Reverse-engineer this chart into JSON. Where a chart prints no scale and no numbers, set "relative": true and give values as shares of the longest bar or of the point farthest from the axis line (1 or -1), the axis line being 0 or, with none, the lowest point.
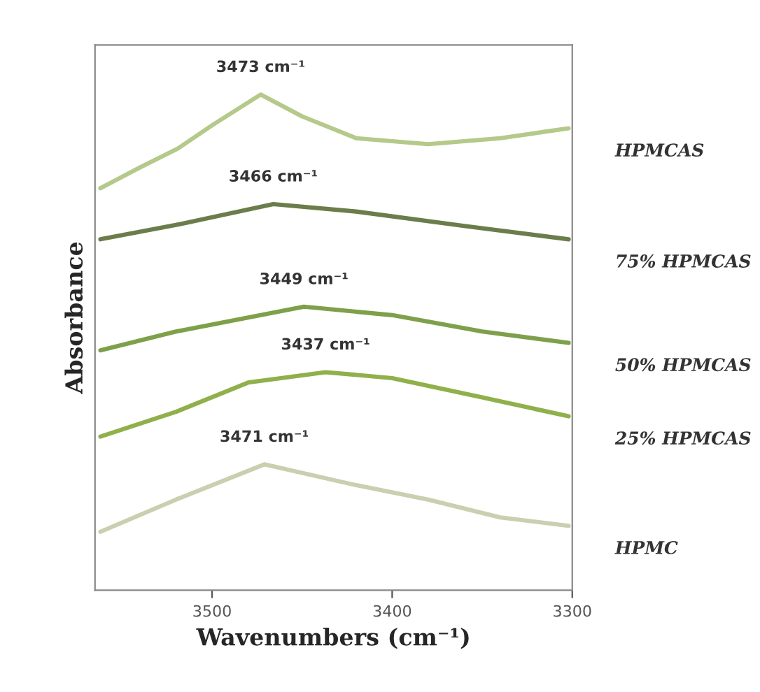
{
  "chart_data": {
    "type": "line",
    "relative": true,
    "xlabel": "Wavenumbers (cm⁻¹)",
    "ylabel": "Absorbance",
    "xlim": [
      3565,
      3300
    ],
    "xticks": [
      3500,
      3400,
      3300
    ],
    "grid": false,
    "legend": false,
    "marker": "none",
    "line_style": "solid",
    "series": [
      {
        "name": "HPMCAS",
        "color": "#b5c98a",
        "x": [
          3562,
          3540,
          3519,
          3500,
          3473,
          3450,
          3420,
          3380,
          3340,
          3302
        ],
        "values": [
          0.811,
          0.853,
          0.891,
          0.938,
          1.0,
          0.956,
          0.912,
          0.9,
          0.912,
          0.932
        ]
      },
      {
        "name": "75% HPMCAS",
        "color": "#6b7d4a",
        "x": [
          3562,
          3520,
          3466,
          3420,
          3360,
          3302
        ],
        "values": [
          0.708,
          0.737,
          0.779,
          0.764,
          0.735,
          0.708
        ]
      },
      {
        "name": "50% HPMCAS",
        "color": "#7fa04a",
        "x": [
          3562,
          3520,
          3449,
          3400,
          3350,
          3302
        ],
        "values": [
          0.484,
          0.522,
          0.572,
          0.555,
          0.522,
          0.499
        ]
      },
      {
        "name": "25% HPMCAS",
        "color": "#8fb04a",
        "x": [
          3562,
          3520,
          3480,
          3437,
          3400,
          3350,
          3302
        ],
        "values": [
          0.31,
          0.36,
          0.419,
          0.44,
          0.428,
          0.389,
          0.351
        ]
      },
      {
        "name": "HPMC",
        "color": "#c8d0b0",
        "x": [
          3562,
          3520,
          3471,
          3420,
          3380,
          3340,
          3302
        ],
        "values": [
          0.118,
          0.183,
          0.254,
          0.212,
          0.183,
          0.147,
          0.13
        ]
      }
    ],
    "annotations": [
      {
        "text": "3473 cm⁻¹",
        "x": 3473,
        "y": 1.0
      },
      {
        "text": "3466 cm⁻¹",
        "x": 3466,
        "y": 0.779
      },
      {
        "text": "3449 cm⁻¹",
        "x": 3449,
        "y": 0.572
      },
      {
        "text": "3437 cm⁻¹",
        "x": 3437,
        "y": 0.44
      },
      {
        "text": "3471 cm⁻¹",
        "x": 3471,
        "y": 0.254
      }
    ]
  }
}
